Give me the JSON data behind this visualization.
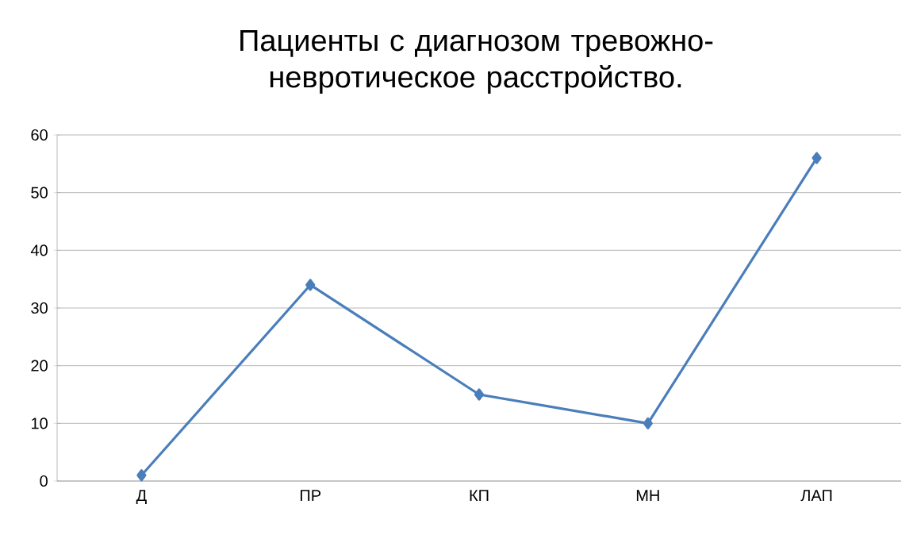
{
  "chart_data": {
    "type": "line",
    "title": "Пациенты с диагнозом тревожно-невротическое расстройство.",
    "categories": [
      "Д",
      "ПР",
      "КП",
      "МН",
      "ЛАП"
    ],
    "series": [
      {
        "color": "#4a7ebb",
        "values": [
          1,
          34,
          15,
          10,
          56
        ]
      }
    ],
    "ylim": [
      0,
      60
    ],
    "yticks": [
      0,
      10,
      20,
      30,
      40,
      50,
      60
    ],
    "grid": "y",
    "legend": false,
    "marker": "diamond",
    "line_style": "solid"
  }
}
